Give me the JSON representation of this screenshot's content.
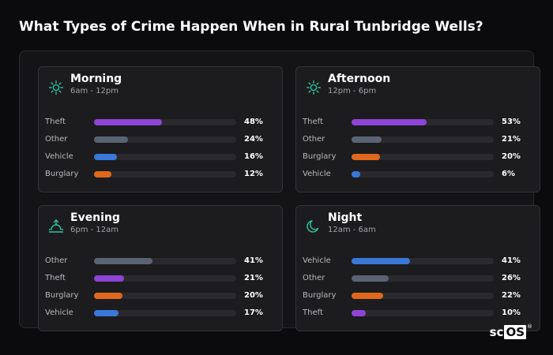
{
  "title": "What Types of Crime Happen When in Rural Tunbridge Wells?",
  "colors": {
    "Theft": "#8e44d6",
    "Other": "#5b6373",
    "Vehicle": "#3a78d8",
    "Burglary": "#e0681c",
    "icon": "#2ec4a0"
  },
  "brand": {
    "prefix": "sc",
    "boxed": "OS",
    "mark": "®"
  },
  "chart_data": [
    {
      "type": "bar",
      "title": "Morning",
      "subtitle": "6am - 12pm",
      "icon": "sun-icon",
      "categories": [
        "Theft",
        "Other",
        "Vehicle",
        "Burglary"
      ],
      "values": [
        48,
        24,
        16,
        12
      ],
      "labels": [
        "48%",
        "24%",
        "16%",
        "12%"
      ],
      "xlim": [
        0,
        100
      ]
    },
    {
      "type": "bar",
      "title": "Afternoon",
      "subtitle": "12pm - 6pm",
      "icon": "sun-icon",
      "categories": [
        "Theft",
        "Other",
        "Burglary",
        "Vehicle"
      ],
      "values": [
        53,
        21,
        20,
        6
      ],
      "labels": [
        "53%",
        "21%",
        "20%",
        "6%"
      ],
      "xlim": [
        0,
        100
      ]
    },
    {
      "type": "bar",
      "title": "Evening",
      "subtitle": "6pm - 12am",
      "icon": "sunset-icon",
      "categories": [
        "Other",
        "Theft",
        "Burglary",
        "Vehicle"
      ],
      "values": [
        41,
        21,
        20,
        17
      ],
      "labels": [
        "41%",
        "21%",
        "20%",
        "17%"
      ],
      "xlim": [
        0,
        100
      ]
    },
    {
      "type": "bar",
      "title": "Night",
      "subtitle": "12am - 6am",
      "icon": "moon-icon",
      "categories": [
        "Vehicle",
        "Other",
        "Burglary",
        "Theft"
      ],
      "values": [
        41,
        26,
        22,
        10
      ],
      "labels": [
        "41%",
        "26%",
        "22%",
        "10%"
      ],
      "xlim": [
        0,
        100
      ]
    }
  ]
}
